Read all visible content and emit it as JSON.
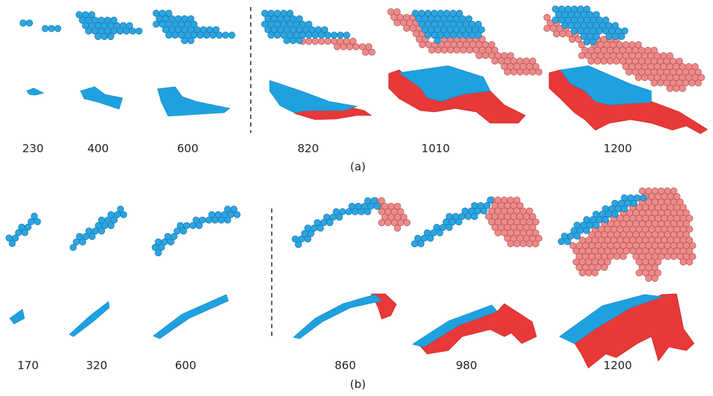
{
  "panels": {
    "a": {
      "labels": [
        "230",
        "400",
        "600",
        "820",
        "1010",
        "1200"
      ],
      "caption": "(a)"
    },
    "b": {
      "labels": [
        "170",
        "320",
        "600",
        "860",
        "980",
        "1200"
      ],
      "caption": "(b)"
    }
  }
}
